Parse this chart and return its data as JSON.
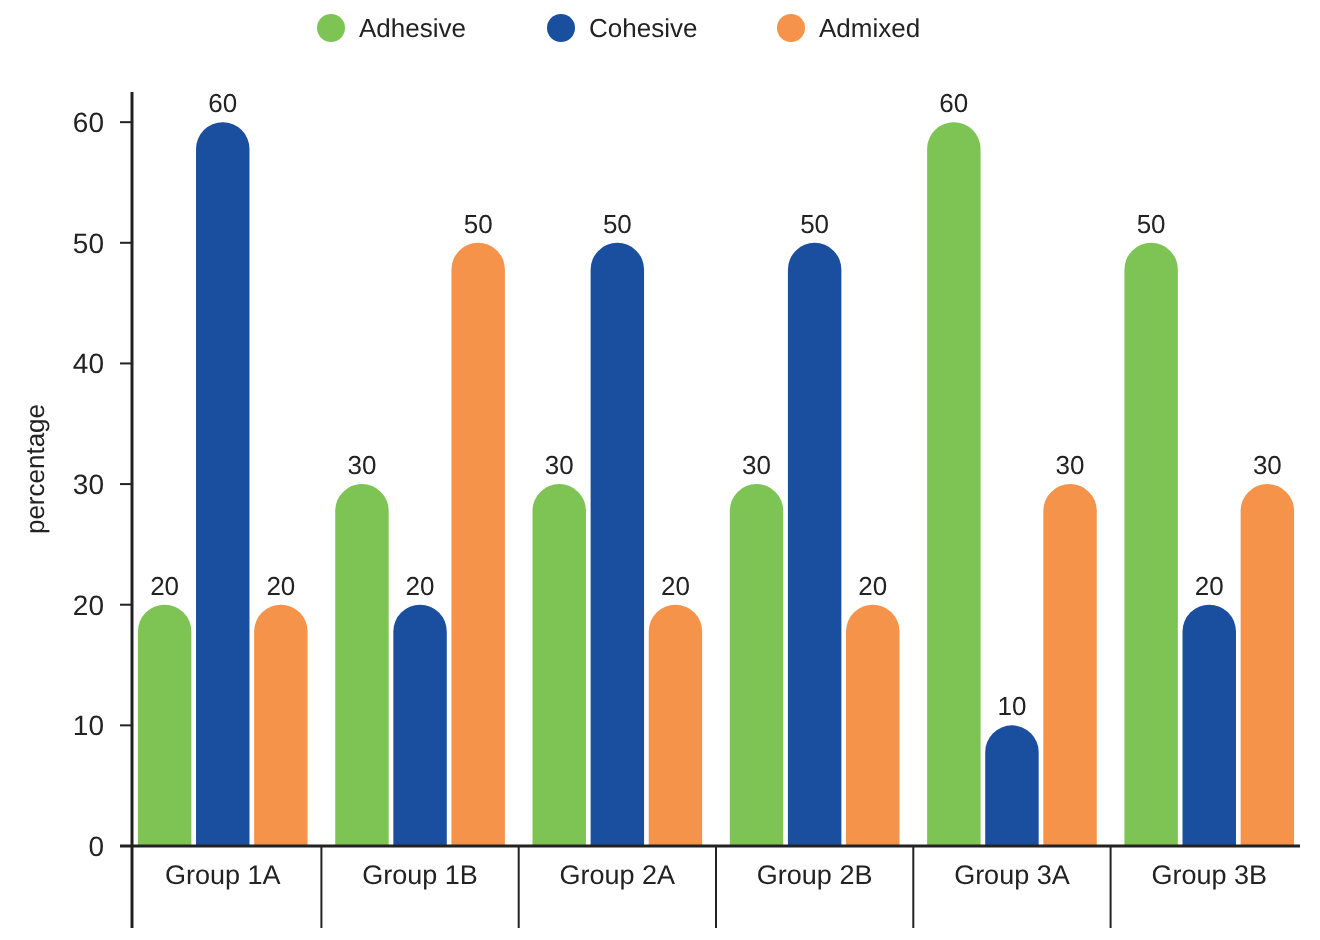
{
  "chart_data": {
    "type": "bar",
    "ylabel": "percentage",
    "categories": [
      "Group 1A",
      "Group 1B",
      "Group 2A",
      "Group 2B",
      "Group 3A",
      "Group 3B"
    ],
    "series": [
      {
        "name": "Adhesive",
        "color": "#7dc455",
        "values": [
          20,
          30,
          30,
          30,
          60,
          50
        ]
      },
      {
        "name": "Cohesive",
        "color": "#1a4fa0",
        "values": [
          60,
          20,
          50,
          50,
          10,
          20
        ]
      },
      {
        "name": "Admixed",
        "color": "#f5934a",
        "values": [
          20,
          50,
          20,
          20,
          30,
          30
        ]
      }
    ],
    "ylim": [
      0,
      62.5
    ],
    "yticks": [
      0,
      10,
      20,
      30,
      40,
      50,
      60
    ],
    "data_labels": true,
    "legend": "top",
    "grid": false
  }
}
